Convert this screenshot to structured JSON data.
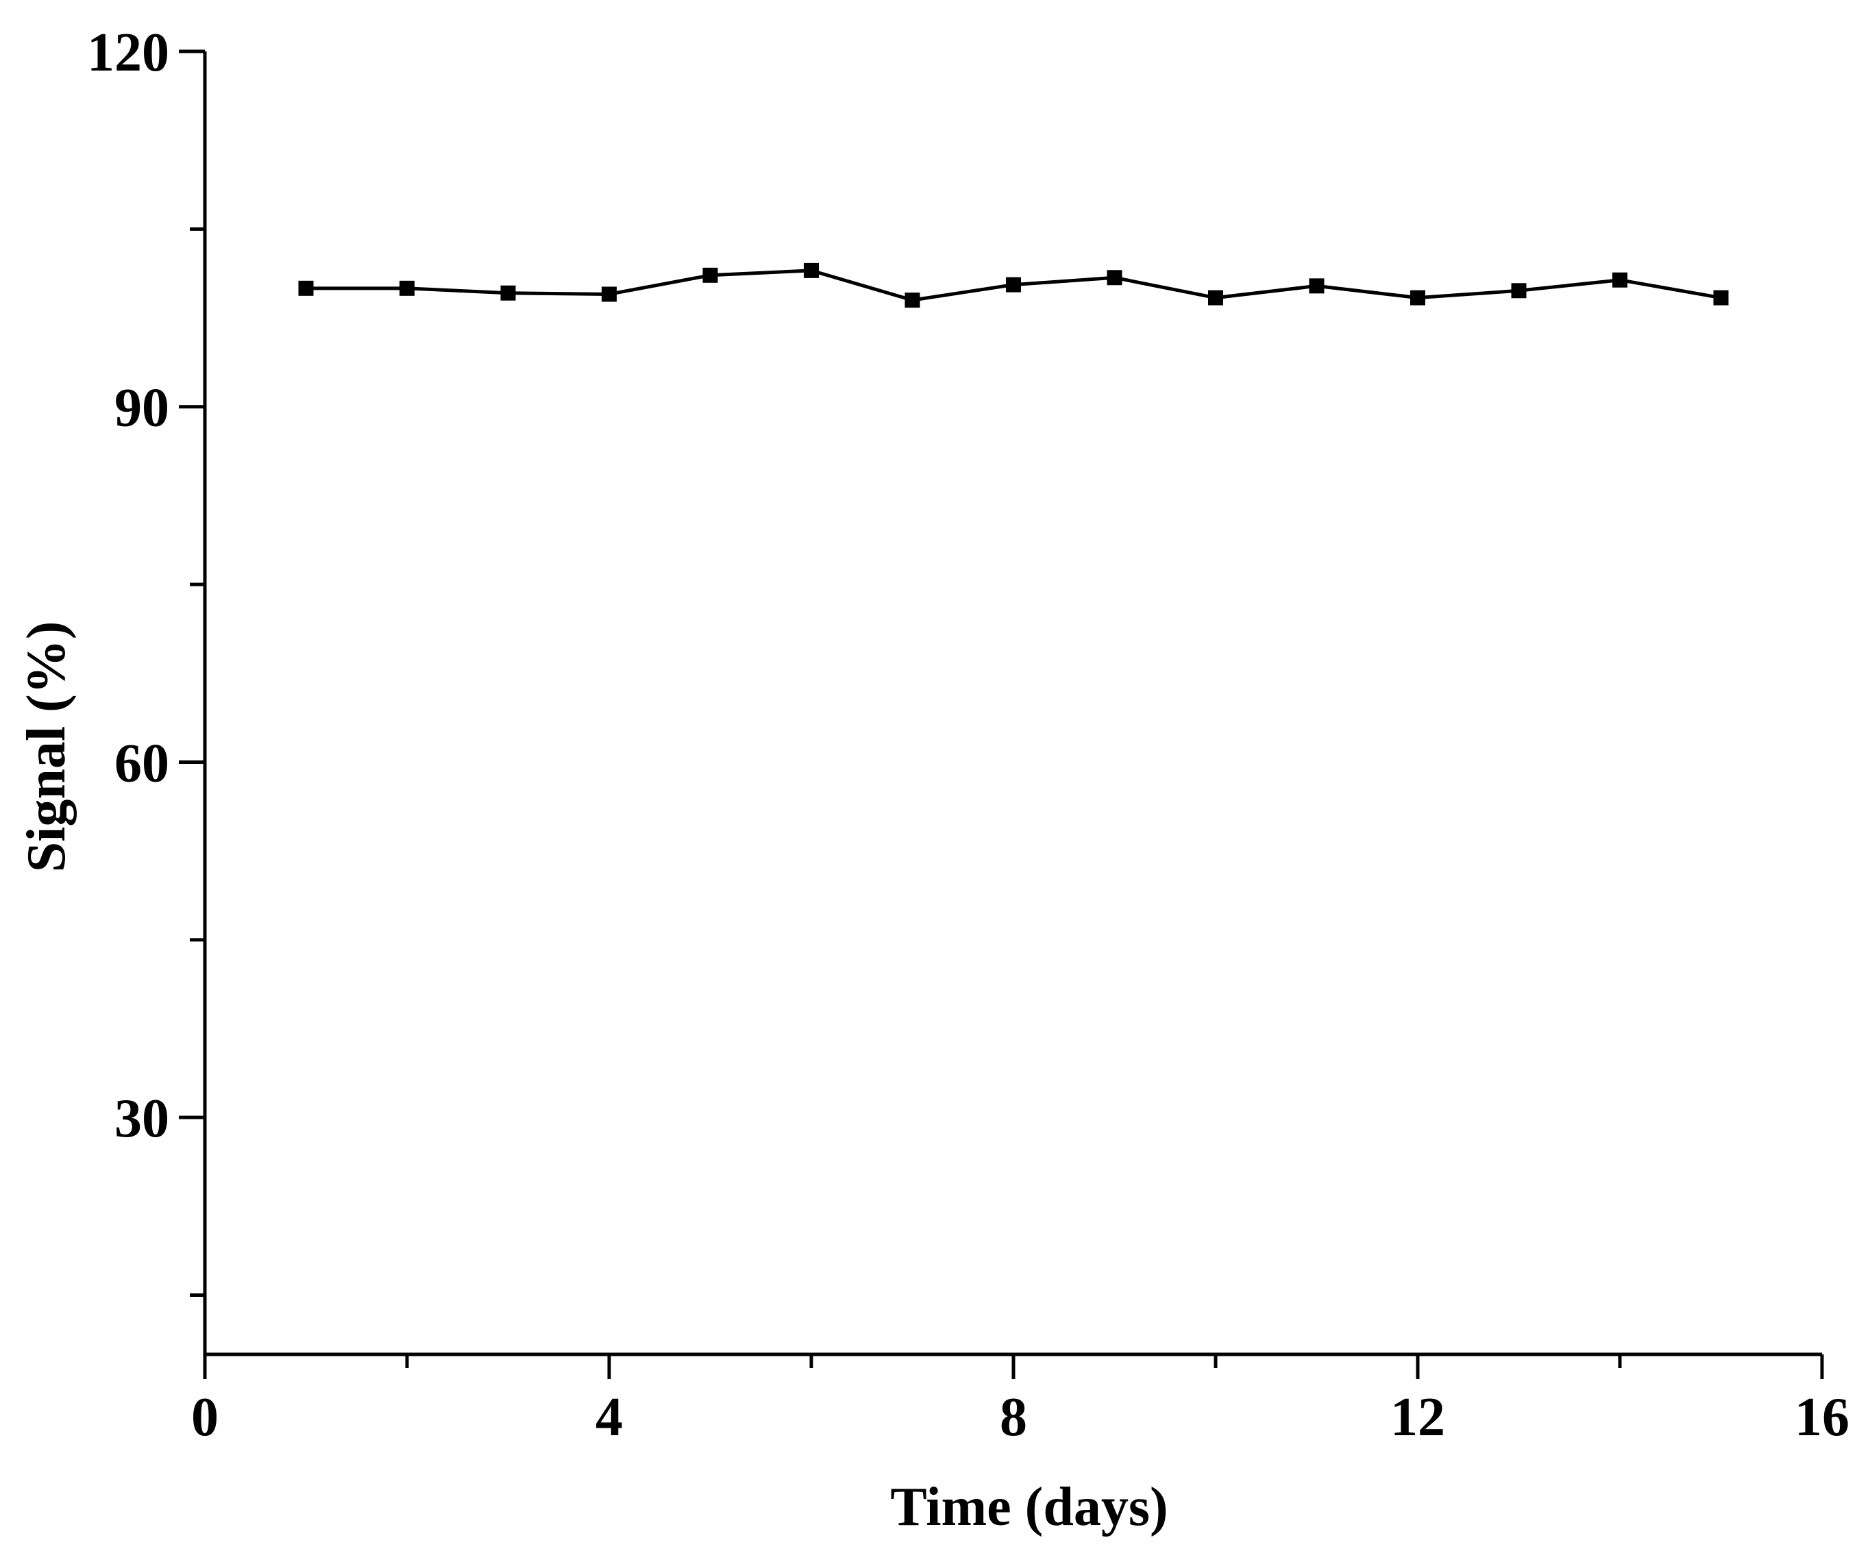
{
  "chart_data": {
    "type": "line",
    "title": "",
    "xlabel": "Time (days)",
    "ylabel": "Signal (%)",
    "xlim": [
      0,
      16
    ],
    "ylim": [
      10,
      120
    ],
    "x_ticks": [
      0,
      4,
      8,
      12,
      16
    ],
    "x_tick_labels": [
      "0",
      "4",
      "8",
      "12",
      "16"
    ],
    "x_minor_ticks": [
      2,
      6,
      10,
      14
    ],
    "y_ticks": [
      30,
      60,
      90,
      120
    ],
    "y_tick_labels": [
      "30",
      "60",
      "90",
      "120"
    ],
    "y_minor_ticks": [
      15,
      45,
      75,
      105
    ],
    "grid": false,
    "legend": "none",
    "series": [
      {
        "marker": "square",
        "color": "#000000",
        "x": [
          1,
          2,
          3,
          4,
          5,
          6,
          7,
          8,
          9,
          10,
          11,
          12,
          13,
          14,
          15
        ],
        "y": [
          100.0,
          100.0,
          99.6,
          99.5,
          101.1,
          101.5,
          99.0,
          100.3,
          100.9,
          99.2,
          100.2,
          99.2,
          99.8,
          100.7,
          99.2
        ]
      }
    ]
  }
}
